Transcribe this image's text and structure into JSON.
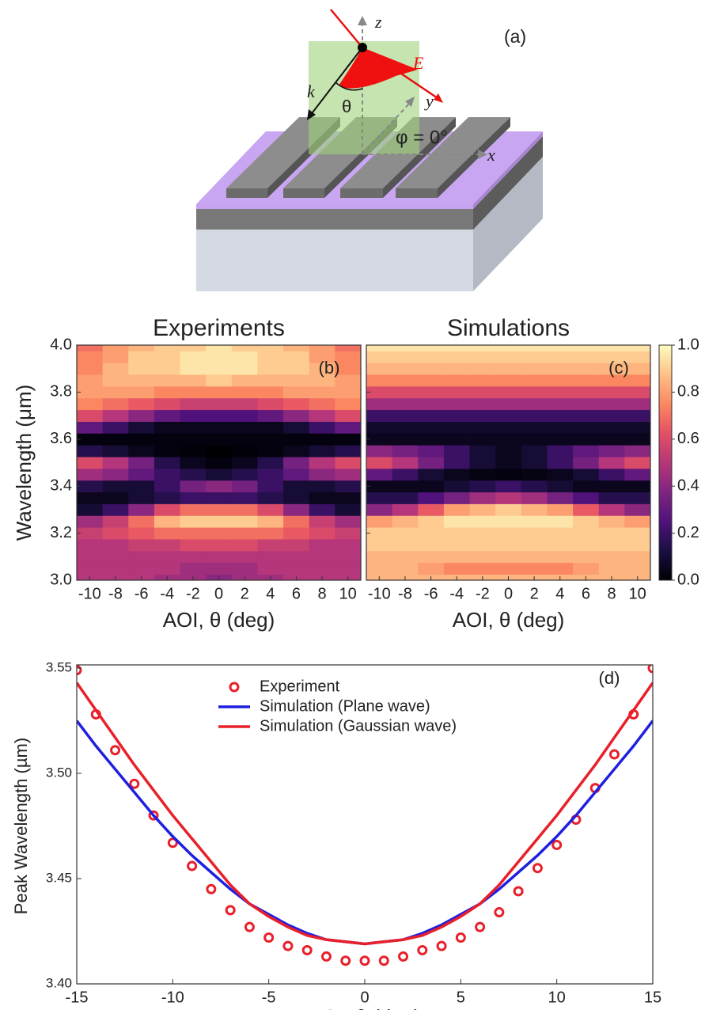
{
  "diagram": {
    "label": "(a)",
    "axis_z": "z",
    "axis_y": "y",
    "axis_x": "x",
    "field": "E⃗",
    "wavevector": "k⃗",
    "angle": "θ",
    "azimuth": "φ = 0°"
  },
  "chart_data": [
    {
      "type": "heatmap",
      "title": "Experiments",
      "label": "(b)",
      "xlabel": "AOI, θ (deg)",
      "ylabel": "Wavelength (μm)",
      "x": [
        -10,
        -8,
        -6,
        -4,
        -2,
        0,
        2,
        4,
        6,
        8,
        10
      ],
      "y": [
        3.0,
        3.05,
        3.1,
        3.15,
        3.2,
        3.25,
        3.3,
        3.35,
        3.4,
        3.45,
        3.5,
        3.55,
        3.6,
        3.65,
        3.7,
        3.75,
        3.8,
        3.85,
        3.9,
        3.95,
        4.0
      ],
      "z": [
        [
          0.5,
          0.5,
          0.5,
          0.45,
          0.45,
          0.4,
          0.45,
          0.45,
          0.5,
          0.5,
          0.5
        ],
        [
          0.5,
          0.5,
          0.5,
          0.5,
          0.45,
          0.45,
          0.45,
          0.5,
          0.5,
          0.5,
          0.5
        ],
        [
          0.5,
          0.5,
          0.5,
          0.5,
          0.5,
          0.5,
          0.5,
          0.5,
          0.5,
          0.5,
          0.5
        ],
        [
          0.5,
          0.5,
          0.55,
          0.55,
          0.6,
          0.6,
          0.6,
          0.55,
          0.55,
          0.5,
          0.5
        ],
        [
          0.55,
          0.6,
          0.65,
          0.7,
          0.7,
          0.7,
          0.7,
          0.7,
          0.65,
          0.6,
          0.55
        ],
        [
          0.45,
          0.55,
          0.7,
          0.85,
          0.9,
          0.9,
          0.9,
          0.85,
          0.7,
          0.55,
          0.45
        ],
        [
          0.1,
          0.2,
          0.4,
          0.6,
          0.7,
          0.7,
          0.7,
          0.6,
          0.4,
          0.2,
          0.1
        ],
        [
          0.05,
          0.05,
          0.1,
          0.15,
          0.2,
          0.2,
          0.2,
          0.15,
          0.1,
          0.05,
          0.05
        ],
        [
          0.15,
          0.1,
          0.1,
          0.2,
          0.35,
          0.4,
          0.35,
          0.2,
          0.1,
          0.1,
          0.15
        ],
        [
          0.45,
          0.4,
          0.3,
          0.2,
          0.15,
          0.1,
          0.15,
          0.2,
          0.3,
          0.4,
          0.45
        ],
        [
          0.6,
          0.5,
          0.35,
          0.15,
          0.05,
          0.02,
          0.05,
          0.15,
          0.35,
          0.5,
          0.6
        ],
        [
          0.15,
          0.1,
          0.05,
          0.02,
          0.01,
          0.0,
          0.01,
          0.02,
          0.05,
          0.1,
          0.15
        ],
        [
          0.02,
          0.02,
          0.02,
          0.02,
          0.02,
          0.02,
          0.02,
          0.02,
          0.02,
          0.02,
          0.02
        ],
        [
          0.3,
          0.2,
          0.1,
          0.05,
          0.05,
          0.05,
          0.05,
          0.05,
          0.1,
          0.2,
          0.3
        ],
        [
          0.6,
          0.5,
          0.4,
          0.3,
          0.25,
          0.25,
          0.25,
          0.3,
          0.4,
          0.5,
          0.6
        ],
        [
          0.75,
          0.7,
          0.65,
          0.6,
          0.55,
          0.55,
          0.55,
          0.6,
          0.65,
          0.7,
          0.75
        ],
        [
          0.8,
          0.8,
          0.8,
          0.75,
          0.75,
          0.75,
          0.75,
          0.75,
          0.8,
          0.8,
          0.8
        ],
        [
          0.8,
          0.85,
          0.85,
          0.85,
          0.85,
          0.9,
          0.85,
          0.85,
          0.85,
          0.85,
          0.8
        ],
        [
          0.75,
          0.85,
          0.9,
          0.9,
          0.95,
          0.95,
          0.95,
          0.9,
          0.9,
          0.85,
          0.75
        ],
        [
          0.75,
          0.8,
          0.9,
          0.9,
          0.95,
          0.95,
          0.95,
          0.9,
          0.9,
          0.8,
          0.75
        ],
        [
          0.7,
          0.8,
          0.85,
          0.9,
          0.9,
          0.95,
          0.9,
          0.9,
          0.85,
          0.8,
          0.7
        ]
      ],
      "colormap": "magma",
      "clim": [
        0,
        1
      ],
      "xlim": [
        -11,
        11
      ],
      "xticks": [
        -10,
        -8,
        -6,
        -4,
        -2,
        0,
        2,
        4,
        6,
        8,
        10
      ],
      "ylim": [
        3.0,
        4.0
      ],
      "yticks": [
        {
          "value": 3.0,
          "label": "3.0"
        },
        3.2,
        3.4,
        3.6,
        3.8,
        {
          "value": 4.0,
          "label": "4.0"
        }
      ]
    },
    {
      "type": "heatmap",
      "title": "Simulations",
      "label": "(c)",
      "xlabel": "AOI, θ (deg)",
      "x": [
        -10,
        -8,
        -6,
        -4,
        -2,
        0,
        2,
        4,
        6,
        8,
        10
      ],
      "y": [
        3.0,
        3.05,
        3.1,
        3.15,
        3.2,
        3.25,
        3.3,
        3.35,
        3.4,
        3.45,
        3.5,
        3.55,
        3.6,
        3.65,
        3.7,
        3.75,
        3.8,
        3.85,
        3.9,
        3.95,
        4.0
      ],
      "z": [
        [
          0.85,
          0.85,
          0.85,
          0.85,
          0.85,
          0.85,
          0.85,
          0.85,
          0.85,
          0.85,
          0.85
        ],
        [
          0.85,
          0.85,
          0.8,
          0.75,
          0.75,
          0.75,
          0.75,
          0.75,
          0.8,
          0.85,
          0.85
        ],
        [
          0.85,
          0.85,
          0.85,
          0.85,
          0.85,
          0.85,
          0.85,
          0.85,
          0.85,
          0.85,
          0.85
        ],
        [
          0.9,
          0.9,
          0.9,
          0.9,
          0.9,
          0.9,
          0.9,
          0.9,
          0.9,
          0.9,
          0.9
        ],
        [
          0.9,
          0.9,
          0.9,
          0.9,
          0.9,
          0.9,
          0.9,
          0.9,
          0.9,
          0.9,
          0.9
        ],
        [
          0.8,
          0.85,
          0.9,
          0.95,
          0.95,
          0.95,
          0.95,
          0.95,
          0.9,
          0.85,
          0.8
        ],
        [
          0.4,
          0.5,
          0.65,
          0.8,
          0.85,
          0.9,
          0.85,
          0.8,
          0.65,
          0.5,
          0.4
        ],
        [
          0.15,
          0.15,
          0.25,
          0.35,
          0.45,
          0.5,
          0.45,
          0.35,
          0.25,
          0.15,
          0.15
        ],
        [
          0.05,
          0.05,
          0.05,
          0.1,
          0.15,
          0.2,
          0.15,
          0.1,
          0.05,
          0.05,
          0.05
        ],
        [
          0.3,
          0.2,
          0.1,
          0.05,
          0.03,
          0.02,
          0.03,
          0.05,
          0.1,
          0.2,
          0.3
        ],
        [
          0.6,
          0.5,
          0.35,
          0.2,
          0.1,
          0.05,
          0.1,
          0.2,
          0.35,
          0.5,
          0.6
        ],
        [
          0.4,
          0.35,
          0.3,
          0.2,
          0.1,
          0.05,
          0.1,
          0.2,
          0.3,
          0.35,
          0.4
        ],
        [
          0.05,
          0.05,
          0.05,
          0.05,
          0.05,
          0.05,
          0.05,
          0.05,
          0.05,
          0.05,
          0.05
        ],
        [
          0.08,
          0.08,
          0.08,
          0.08,
          0.08,
          0.08,
          0.08,
          0.08,
          0.08,
          0.08,
          0.08
        ],
        [
          0.2,
          0.2,
          0.2,
          0.2,
          0.2,
          0.2,
          0.2,
          0.2,
          0.2,
          0.2,
          0.2
        ],
        [
          0.45,
          0.45,
          0.45,
          0.45,
          0.45,
          0.45,
          0.45,
          0.45,
          0.45,
          0.45,
          0.45
        ],
        [
          0.6,
          0.6,
          0.6,
          0.6,
          0.6,
          0.6,
          0.6,
          0.6,
          0.6,
          0.6,
          0.6
        ],
        [
          0.75,
          0.75,
          0.75,
          0.75,
          0.75,
          0.75,
          0.75,
          0.75,
          0.75,
          0.75,
          0.75
        ],
        [
          0.85,
          0.85,
          0.85,
          0.85,
          0.85,
          0.85,
          0.85,
          0.85,
          0.85,
          0.85,
          0.85
        ],
        [
          0.9,
          0.9,
          0.9,
          0.9,
          0.9,
          0.9,
          0.9,
          0.9,
          0.9,
          0.9,
          0.9
        ],
        [
          0.95,
          0.95,
          0.95,
          0.95,
          0.95,
          0.95,
          0.95,
          0.95,
          0.95,
          0.95,
          0.95
        ]
      ],
      "colormap": "magma",
      "clim": [
        0,
        1
      ],
      "cticks": [
        {
          "value": 0,
          "label": "0.0"
        },
        0.2,
        0.4,
        0.6,
        0.8,
        {
          "value": 1,
          "label": "1.0"
        }
      ],
      "xlim": [
        -11,
        11
      ],
      "xticks": [
        -10,
        -8,
        -6,
        -4,
        -2,
        0,
        2,
        4,
        6,
        8,
        10
      ],
      "ylim": [
        3.0,
        4.0
      ]
    },
    {
      "type": "line",
      "label": "(d)",
      "xlabel": "AOI, θ (deg)",
      "ylabel": "Peak Wavelength (µm)",
      "x": [
        -15,
        -14,
        -13,
        -12,
        -11,
        -10,
        -9,
        -8,
        -7,
        -6,
        -5,
        -4,
        -3,
        -2,
        -1,
        0,
        1,
        2,
        3,
        4,
        5,
        6,
        7,
        8,
        9,
        10,
        11,
        12,
        13,
        14,
        15
      ],
      "series": [
        {
          "name": "Experiment",
          "color": "#e8202a",
          "style": "markers",
          "values": [
            3.549,
            3.528,
            3.511,
            3.495,
            3.48,
            3.467,
            3.456,
            3.445,
            3.435,
            3.427,
            3.422,
            3.418,
            3.416,
            3.413,
            3.411,
            3.411,
            3.411,
            3.413,
            3.416,
            3.418,
            3.422,
            3.427,
            3.434,
            3.444,
            3.455,
            3.466,
            3.478,
            3.493,
            3.509,
            3.528,
            3.55
          ]
        },
        {
          "name": "Simulation (Plane wave)",
          "color": "#1f1fe0",
          "style": "line",
          "values": [
            3.525,
            3.513,
            3.502,
            3.491,
            3.48,
            3.47,
            3.461,
            3.453,
            3.445,
            3.438,
            3.433,
            3.428,
            3.424,
            3.421,
            3.42,
            3.419,
            3.42,
            3.421,
            3.424,
            3.428,
            3.433,
            3.438,
            3.445,
            3.453,
            3.461,
            3.47,
            3.48,
            3.491,
            3.502,
            3.513,
            3.525
          ]
        },
        {
          "name": "Simulation (Gaussian wave)",
          "color": "#e8202a",
          "style": "line",
          "values": [
            3.543,
            3.53,
            3.517,
            3.504,
            3.492,
            3.48,
            3.469,
            3.458,
            3.447,
            3.438,
            3.432,
            3.427,
            3.423,
            3.421,
            3.42,
            3.419,
            3.42,
            3.421,
            3.423,
            3.427,
            3.432,
            3.438,
            3.447,
            3.458,
            3.469,
            3.48,
            3.492,
            3.504,
            3.517,
            3.53,
            3.543
          ]
        }
      ],
      "xlim": [
        -15,
        15
      ],
      "xticks": [
        -15,
        -10,
        -5,
        0,
        5,
        10,
        15
      ],
      "ylim": [
        3.4,
        3.55
      ],
      "yticks": [
        {
          "value": 3.4,
          "label": "3.40"
        },
        3.45,
        {
          "value": 3.5,
          "label": "3.50"
        },
        3.55
      ]
    }
  ]
}
